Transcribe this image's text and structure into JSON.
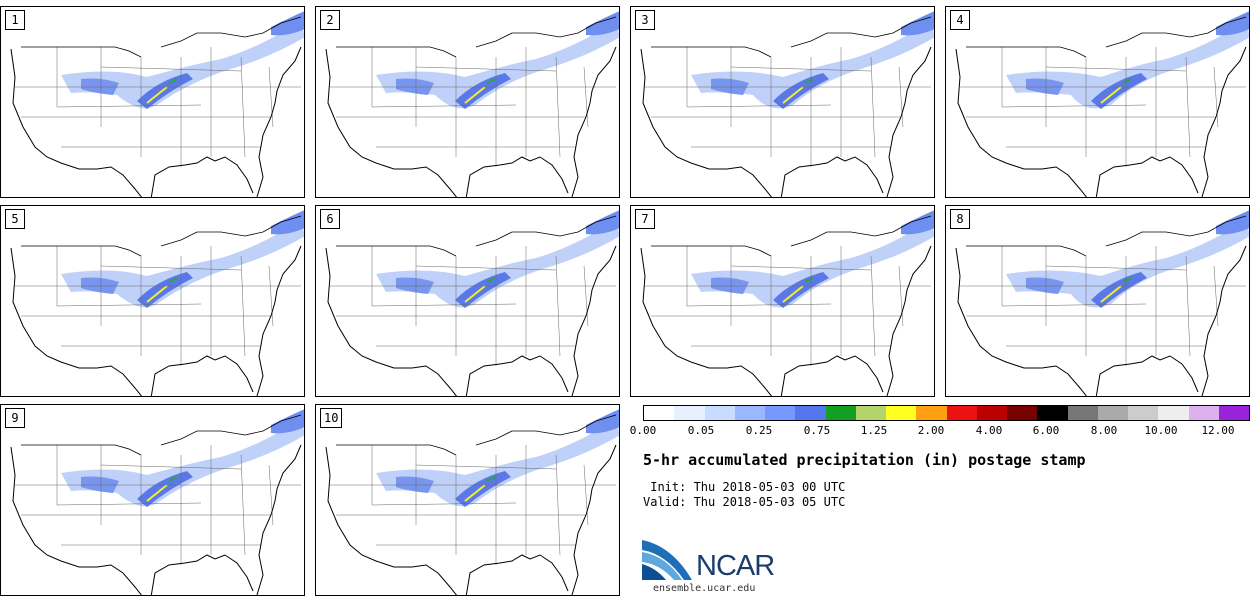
{
  "panels": [
    {
      "label": "1"
    },
    {
      "label": "2"
    },
    {
      "label": "3"
    },
    {
      "label": "4"
    },
    {
      "label": "5"
    },
    {
      "label": "6"
    },
    {
      "label": "7"
    },
    {
      "label": "8"
    },
    {
      "label": "9"
    },
    {
      "label": "10"
    }
  ],
  "legend": {
    "colors": [
      "#ffffff",
      "#e6f0ff",
      "#c8dcff",
      "#9ab8ff",
      "#7799ff",
      "#5577ee",
      "#11a022",
      "#b3d46a",
      "#ffff22",
      "#ffa011",
      "#ee1111",
      "#bb0000",
      "#770000",
      "#000000",
      "#777777",
      "#aaaaaa",
      "#cccccc",
      "#eeeeee",
      "#ddb0ee",
      "#9922dd"
    ],
    "ticks": [
      "0.00",
      "0.05",
      "0.25",
      "0.75",
      "1.25",
      "2.00",
      "4.00",
      "6.00",
      "8.00",
      "10.00",
      "12.00"
    ]
  },
  "title": "5-hr accumulated precipitation (in) postage stamp",
  "init": " Init: Thu 2018-05-03 00 UTC",
  "valid": "Valid: Thu 2018-05-03 05 UTC",
  "logo": {
    "text": "NCAR",
    "url": "ensemble.ucar.edu"
  }
}
